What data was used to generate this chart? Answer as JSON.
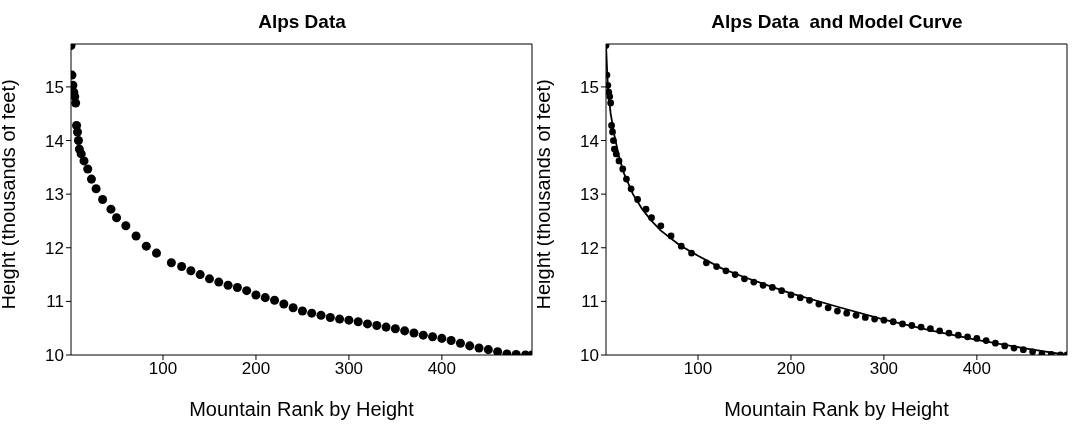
{
  "chart_data": [
    {
      "type": "scatter",
      "title": "Alps Data",
      "xlabel": "Mountain Rank by Height",
      "ylabel": "Height (thousands of feet)",
      "marker": "circle",
      "color": "#000000",
      "xlim": [
        1,
        497
      ],
      "ylim": [
        10,
        15.8
      ],
      "xticks": [
        100,
        200,
        300,
        400
      ],
      "yticks": [
        10,
        11,
        12,
        13,
        14,
        15
      ],
      "x": [
        1,
        2,
        3,
        4,
        5,
        6,
        7,
        8,
        9,
        10,
        12,
        15,
        19,
        23,
        28,
        35,
        44,
        50,
        60,
        71,
        82,
        93,
        109,
        120,
        130,
        140,
        150,
        160,
        170,
        180,
        190,
        200,
        210,
        220,
        230,
        240,
        250,
        260,
        270,
        280,
        290,
        300,
        310,
        320,
        330,
        340,
        350,
        360,
        370,
        380,
        390,
        400,
        410,
        420,
        430,
        440,
        450,
        460,
        470,
        480,
        490,
        497
      ],
      "values": [
        15.77,
        15.22,
        15.03,
        14.9,
        14.82,
        14.7,
        14.28,
        14.16,
        14.0,
        13.84,
        13.75,
        13.62,
        13.47,
        13.28,
        13.1,
        12.9,
        12.72,
        12.56,
        12.41,
        12.22,
        12.03,
        11.9,
        11.72,
        11.65,
        11.57,
        11.5,
        11.42,
        11.36,
        11.3,
        11.26,
        11.2,
        11.12,
        11.07,
        11.02,
        10.95,
        10.88,
        10.82,
        10.78,
        10.74,
        10.7,
        10.67,
        10.65,
        10.62,
        10.58,
        10.55,
        10.52,
        10.49,
        10.45,
        10.41,
        10.37,
        10.34,
        10.31,
        10.27,
        10.22,
        10.17,
        10.13,
        10.1,
        10.06,
        10.02,
        10.01,
        10.0,
        10.0
      ]
    },
    {
      "type": "scatter",
      "title": "Alps Data  and Model Curve",
      "xlabel": "Mountain Rank by Height",
      "ylabel": "Height (thousands of feet)",
      "xlim": [
        1,
        497
      ],
      "ylim": [
        10,
        15.8
      ],
      "xticks": [
        100,
        200,
        300,
        400
      ],
      "yticks": [
        10,
        11,
        12,
        13,
        14,
        15
      ],
      "series": [
        {
          "type": "scatter",
          "marker": "circle",
          "color": "#000000",
          "x": [
            1,
            2,
            3,
            4,
            5,
            6,
            7,
            8,
            9,
            10,
            12,
            15,
            19,
            23,
            28,
            35,
            44,
            50,
            60,
            71,
            82,
            93,
            109,
            120,
            130,
            140,
            150,
            160,
            170,
            180,
            190,
            200,
            210,
            220,
            230,
            240,
            250,
            260,
            270,
            280,
            290,
            300,
            310,
            320,
            330,
            340,
            350,
            360,
            370,
            380,
            390,
            400,
            410,
            420,
            430,
            440,
            450,
            460,
            470,
            480,
            490,
            497
          ],
          "values": [
            15.77,
            15.22,
            15.03,
            14.9,
            14.82,
            14.7,
            14.28,
            14.16,
            14.0,
            13.84,
            13.75,
            13.62,
            13.47,
            13.28,
            13.1,
            12.9,
            12.72,
            12.56,
            12.41,
            12.22,
            12.03,
            11.9,
            11.72,
            11.65,
            11.57,
            11.5,
            11.42,
            11.36,
            11.3,
            11.26,
            11.2,
            11.12,
            11.07,
            11.02,
            10.95,
            10.88,
            10.82,
            10.78,
            10.74,
            10.7,
            10.67,
            10.65,
            10.62,
            10.58,
            10.55,
            10.52,
            10.49,
            10.45,
            10.41,
            10.37,
            10.34,
            10.31,
            10.27,
            10.22,
            10.17,
            10.13,
            10.1,
            10.06,
            10.02,
            10.01,
            10.0,
            10.0
          ]
        },
        {
          "type": "line",
          "marker": "none",
          "color": "#000000",
          "x": [
            1,
            3,
            6,
            10,
            15,
            20,
            30,
            40,
            50,
            60,
            80,
            100,
            125,
            150,
            175,
            200,
            250,
            300,
            350,
            400,
            450,
            497
          ],
          "values": [
            15.77,
            15.0,
            14.5,
            14.1,
            13.7,
            13.4,
            13.0,
            12.72,
            12.5,
            12.32,
            12.05,
            11.85,
            11.62,
            11.45,
            11.3,
            11.15,
            10.9,
            10.66,
            10.46,
            10.28,
            10.13,
            10.0
          ]
        }
      ]
    }
  ]
}
